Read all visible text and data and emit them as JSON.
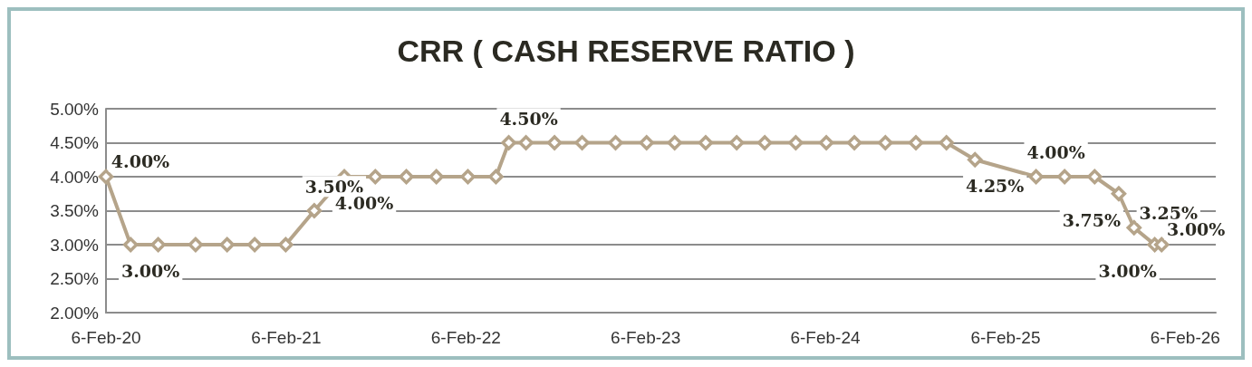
{
  "chart_data": {
    "type": "line",
    "title": "CRR ( CASH RESERVE RATIO )",
    "x": [
      "2020-02-06",
      "2020-03-27",
      "2020-05-22",
      "2020-08-06",
      "2020-10-09",
      "2020-12-04",
      "2021-02-05",
      "2021-04-04",
      "2021-06-04",
      "2021-08-06",
      "2021-10-08",
      "2021-12-08",
      "2022-02-10",
      "2022-04-08",
      "2022-05-04",
      "2022-06-08",
      "2022-08-05",
      "2022-09-30",
      "2022-12-07",
      "2023-02-08",
      "2023-04-06",
      "2023-06-08",
      "2023-08-10",
      "2023-10-06",
      "2023-12-08",
      "2024-02-08",
      "2024-04-05",
      "2024-06-07",
      "2024-08-08",
      "2024-10-09",
      "2024-12-06",
      "2025-04-09",
      "2025-06-06",
      "2025-08-06",
      "2025-09-24",
      "2025-10-25",
      "2025-12-06",
      "2025-12-20"
    ],
    "series": [
      {
        "color": "#b5a48a",
        "values": [
          4.0,
          3.0,
          3.0,
          3.0,
          3.0,
          3.0,
          3.0,
          3.5,
          4.0,
          4.0,
          4.0,
          4.0,
          4.0,
          4.0,
          4.5,
          4.5,
          4.5,
          4.5,
          4.5,
          4.5,
          4.5,
          4.5,
          4.5,
          4.5,
          4.5,
          4.5,
          4.5,
          4.5,
          4.5,
          4.5,
          4.25,
          4.0,
          4.0,
          4.0,
          3.75,
          3.25,
          3.0,
          3.0
        ],
        "value_labels": [
          "4.00%",
          "3.00%",
          null,
          null,
          null,
          null,
          null,
          "3.50%",
          "4.00%",
          null,
          null,
          null,
          null,
          null,
          "4.50%",
          null,
          null,
          null,
          null,
          null,
          null,
          null,
          null,
          null,
          null,
          null,
          null,
          null,
          null,
          null,
          "4.25%",
          "4.00%",
          null,
          null,
          "3.75%",
          "3.25%",
          "3.00%",
          "3.00%"
        ]
      }
    ],
    "xlim": [
      "2020-02-06",
      "2026-04-09"
    ],
    "xticks": [
      {
        "value": "2020-02-06",
        "label": "6-Feb-20"
      },
      {
        "value": "2021-02-06",
        "label": "6-Feb-21"
      },
      {
        "value": "2022-02-06",
        "label": "6-Feb-22"
      },
      {
        "value": "2023-02-06",
        "label": "6-Feb-23"
      },
      {
        "value": "2024-02-06",
        "label": "6-Feb-24"
      },
      {
        "value": "2025-02-06",
        "label": "6-Feb-25"
      },
      {
        "value": "2026-02-06",
        "label": "6-Feb-26"
      }
    ],
    "ylim": [
      2,
      5
    ],
    "yticks": [
      {
        "value": 2,
        "label": "2.00%"
      },
      {
        "value": 2.5,
        "label": "2.50%"
      },
      {
        "value": 3,
        "label": "3.00%"
      },
      {
        "value": 3.5,
        "label": "3.50%"
      },
      {
        "value": 4,
        "label": "4.00%"
      },
      {
        "value": 4.5,
        "label": "4.50%"
      },
      {
        "value": 5,
        "label": "5.00%"
      }
    ],
    "grid": "y",
    "marker": "diamond",
    "line_style": "solid"
  }
}
